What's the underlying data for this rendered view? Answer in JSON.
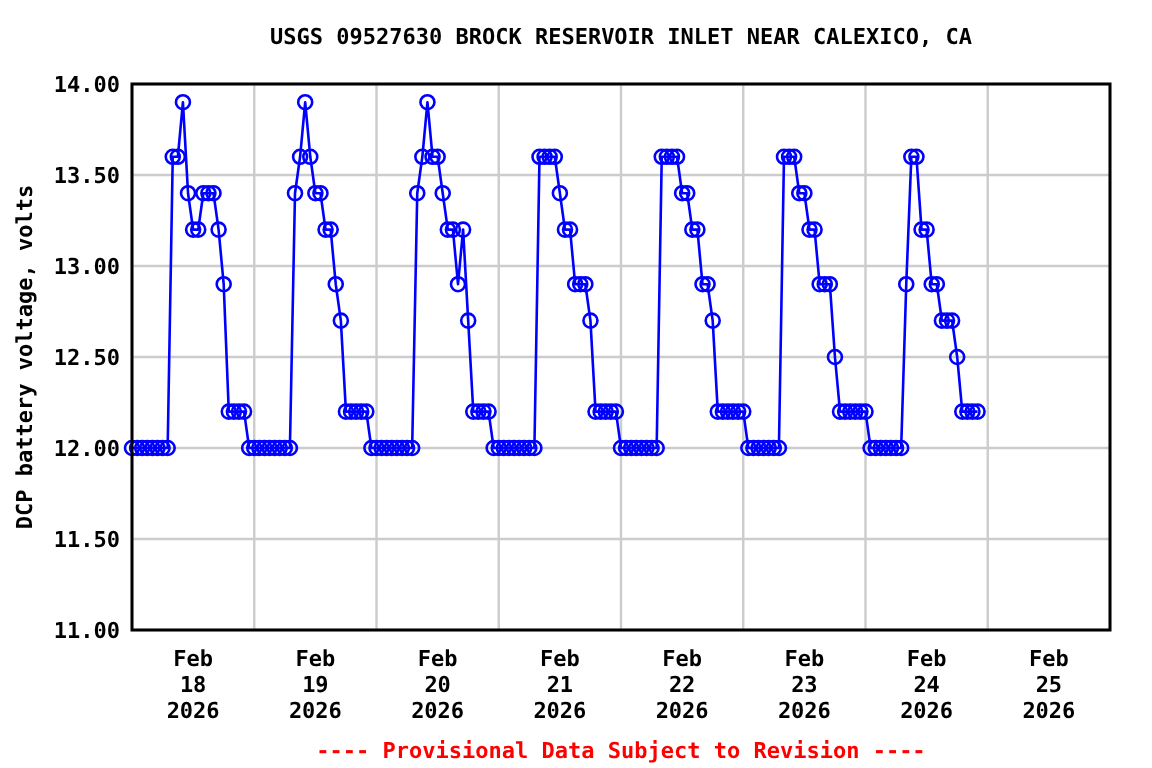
{
  "chart_data": {
    "type": "line",
    "title": "USGS 09527630 BROCK RESERVOIR INLET NEAR CALEXICO, CA",
    "ylabel": "DCP battery voltage, volts",
    "annotations": [
      "---- Provisional Data Subject to Revision ----"
    ],
    "xlim": [
      "2026-02-18T00:00",
      "2026-02-26T00:00"
    ],
    "xticks": [
      {
        "value": "2026-02-18T00:00",
        "label": null
      },
      {
        "value": "2026-02-18T12:00",
        "label": "Feb\n18\n2026"
      },
      {
        "value": "2026-02-19T00:00",
        "label": null
      },
      {
        "value": "2026-02-19T12:00",
        "label": "Feb\n19\n2026"
      },
      {
        "value": "2026-02-20T00:00",
        "label": null
      },
      {
        "value": "2026-02-20T12:00",
        "label": "Feb\n20\n2026"
      },
      {
        "value": "2026-02-21T00:00",
        "label": null
      },
      {
        "value": "2026-02-21T12:00",
        "label": "Feb\n21\n2026"
      },
      {
        "value": "2026-02-22T00:00",
        "label": null
      },
      {
        "value": "2026-02-22T12:00",
        "label": "Feb\n22\n2026"
      },
      {
        "value": "2026-02-23T00:00",
        "label": null
      },
      {
        "value": "2026-02-23T12:00",
        "label": "Feb\n23\n2026"
      },
      {
        "value": "2026-02-24T00:00",
        "label": null
      },
      {
        "value": "2026-02-24T12:00",
        "label": "Feb\n24\n2026"
      },
      {
        "value": "2026-02-25T00:00",
        "label": null
      },
      {
        "value": "2026-02-25T12:00",
        "label": "Feb\n25\n2026"
      },
      {
        "value": "2026-02-26T00:00",
        "label": null
      }
    ],
    "ylim": [
      11,
      14
    ],
    "yticks": [
      {
        "value": 11,
        "label": "11.00"
      },
      {
        "value": 11.5,
        "label": "11.50"
      },
      {
        "value": 12,
        "label": "12.00"
      },
      {
        "value": 12.5,
        "label": "12.50"
      },
      {
        "value": 13,
        "label": "13.00"
      },
      {
        "value": 13.5,
        "label": "13.50"
      },
      {
        "value": 14,
        "label": "14.00"
      }
    ],
    "grid": true,
    "marker": "circle",
    "line_style": "solid",
    "series": [
      {
        "color": "#0000ff",
        "x": [
          "2026-02-18T00:00",
          "2026-02-18T01:00",
          "2026-02-18T02:00",
          "2026-02-18T03:00",
          "2026-02-18T04:00",
          "2026-02-18T05:00",
          "2026-02-18T06:00",
          "2026-02-18T07:00",
          "2026-02-18T08:00",
          "2026-02-18T09:00",
          "2026-02-18T10:00",
          "2026-02-18T11:00",
          "2026-02-18T12:00",
          "2026-02-18T13:00",
          "2026-02-18T14:00",
          "2026-02-18T15:00",
          "2026-02-18T16:00",
          "2026-02-18T17:00",
          "2026-02-18T18:00",
          "2026-02-18T19:00",
          "2026-02-18T20:00",
          "2026-02-18T21:00",
          "2026-02-18T22:00",
          "2026-02-18T23:00",
          "2026-02-19T00:00",
          "2026-02-19T01:00",
          "2026-02-19T02:00",
          "2026-02-19T03:00",
          "2026-02-19T04:00",
          "2026-02-19T05:00",
          "2026-02-19T06:00",
          "2026-02-19T07:00",
          "2026-02-19T08:00",
          "2026-02-19T09:00",
          "2026-02-19T10:00",
          "2026-02-19T11:00",
          "2026-02-19T12:00",
          "2026-02-19T13:00",
          "2026-02-19T14:00",
          "2026-02-19T15:00",
          "2026-02-19T16:00",
          "2026-02-19T17:00",
          "2026-02-19T18:00",
          "2026-02-19T19:00",
          "2026-02-19T20:00",
          "2026-02-19T21:00",
          "2026-02-19T22:00",
          "2026-02-19T23:00",
          "2026-02-20T00:00",
          "2026-02-20T01:00",
          "2026-02-20T02:00",
          "2026-02-20T03:00",
          "2026-02-20T04:00",
          "2026-02-20T05:00",
          "2026-02-20T06:00",
          "2026-02-20T07:00",
          "2026-02-20T08:00",
          "2026-02-20T09:00",
          "2026-02-20T10:00",
          "2026-02-20T11:00",
          "2026-02-20T12:00",
          "2026-02-20T13:00",
          "2026-02-20T14:00",
          "2026-02-20T15:00",
          "2026-02-20T16:00",
          "2026-02-20T17:00",
          "2026-02-20T18:00",
          "2026-02-20T19:00",
          "2026-02-20T20:00",
          "2026-02-20T21:00",
          "2026-02-20T22:00",
          "2026-02-20T23:00",
          "2026-02-21T00:00",
          "2026-02-21T01:00",
          "2026-02-21T02:00",
          "2026-02-21T03:00",
          "2026-02-21T04:00",
          "2026-02-21T05:00",
          "2026-02-21T06:00",
          "2026-02-21T07:00",
          "2026-02-21T08:00",
          "2026-02-21T09:00",
          "2026-02-21T10:00",
          "2026-02-21T11:00",
          "2026-02-21T12:00",
          "2026-02-21T13:00",
          "2026-02-21T14:00",
          "2026-02-21T15:00",
          "2026-02-21T16:00",
          "2026-02-21T17:00",
          "2026-02-21T18:00",
          "2026-02-21T19:00",
          "2026-02-21T20:00",
          "2026-02-21T21:00",
          "2026-02-21T22:00",
          "2026-02-21T23:00",
          "2026-02-22T00:00",
          "2026-02-22T01:00",
          "2026-02-22T02:00",
          "2026-02-22T03:00",
          "2026-02-22T04:00",
          "2026-02-22T05:00",
          "2026-02-22T06:00",
          "2026-02-22T07:00",
          "2026-02-22T08:00",
          "2026-02-22T09:00",
          "2026-02-22T10:00",
          "2026-02-22T11:00",
          "2026-02-22T12:00",
          "2026-02-22T13:00",
          "2026-02-22T14:00",
          "2026-02-22T15:00",
          "2026-02-22T16:00",
          "2026-02-22T17:00",
          "2026-02-22T18:00",
          "2026-02-22T19:00",
          "2026-02-22T20:00",
          "2026-02-22T21:00",
          "2026-02-22T22:00",
          "2026-02-22T23:00",
          "2026-02-23T00:00",
          "2026-02-23T01:00",
          "2026-02-23T02:00",
          "2026-02-23T03:00",
          "2026-02-23T04:00",
          "2026-02-23T05:00",
          "2026-02-23T06:00",
          "2026-02-23T07:00",
          "2026-02-23T08:00",
          "2026-02-23T09:00",
          "2026-02-23T10:00",
          "2026-02-23T11:00",
          "2026-02-23T12:00",
          "2026-02-23T13:00",
          "2026-02-23T14:00",
          "2026-02-23T15:00",
          "2026-02-23T16:00",
          "2026-02-23T17:00",
          "2026-02-23T18:00",
          "2026-02-23T19:00",
          "2026-02-23T20:00",
          "2026-02-23T21:00",
          "2026-02-23T22:00",
          "2026-02-23T23:00",
          "2026-02-24T00:00",
          "2026-02-24T01:00",
          "2026-02-24T02:00",
          "2026-02-24T03:00",
          "2026-02-24T04:00",
          "2026-02-24T05:00",
          "2026-02-24T06:00",
          "2026-02-24T07:00",
          "2026-02-24T08:00",
          "2026-02-24T09:00",
          "2026-02-24T10:00",
          "2026-02-24T11:00",
          "2026-02-24T12:00",
          "2026-02-24T13:00",
          "2026-02-24T14:00",
          "2026-02-24T15:00",
          "2026-02-24T16:00",
          "2026-02-24T17:00",
          "2026-02-24T18:00",
          "2026-02-24T19:00",
          "2026-02-24T20:00",
          "2026-02-24T21:00",
          "2026-02-24T22:00"
        ],
        "values": [
          12,
          12,
          12,
          12,
          12,
          12,
          12,
          12,
          13.6,
          13.6,
          13.9,
          13.4,
          13.2,
          13.2,
          13.4,
          13.4,
          13.4,
          13.2,
          12.9,
          12.2,
          12.2,
          12.2,
          12.2,
          12,
          12,
          12,
          12,
          12,
          12,
          12,
          12,
          12,
          13.4,
          13.6,
          13.9,
          13.6,
          13.4,
          13.4,
          13.2,
          13.2,
          12.9,
          12.7,
          12.2,
          12.2,
          12.2,
          12.2,
          12.2,
          12,
          12,
          12,
          12,
          12,
          12,
          12,
          12,
          12,
          13.4,
          13.6,
          13.9,
          13.6,
          13.6,
          13.4,
          13.2,
          13.2,
          12.9,
          13.2,
          12.7,
          12.2,
          12.2,
          12.2,
          12.2,
          12,
          12,
          12,
          12,
          12,
          12,
          12,
          12,
          12,
          13.6,
          13.6,
          13.6,
          13.6,
          13.4,
          13.2,
          13.2,
          12.9,
          12.9,
          12.9,
          12.7,
          12.2,
          12.2,
          12.2,
          12.2,
          12.2,
          12,
          12,
          12,
          12,
          12,
          12,
          12,
          12,
          13.6,
          13.6,
          13.6,
          13.6,
          13.4,
          13.4,
          13.2,
          13.2,
          12.9,
          12.9,
          12.7,
          12.2,
          12.2,
          12.2,
          12.2,
          12.2,
          12.2,
          12,
          12,
          12,
          12,
          12,
          12,
          12,
          13.6,
          13.6,
          13.6,
          13.4,
          13.4,
          13.2,
          13.2,
          12.9,
          12.9,
          12.9,
          12.5,
          12.2,
          12.2,
          12.2,
          12.2,
          12.2,
          12.2,
          12,
          12,
          12,
          12,
          12,
          12,
          12,
          12.9,
          13.6,
          13.6,
          13.2,
          13.2,
          12.9,
          12.9,
          12.7,
          12.7,
          12.7,
          12.5,
          12.2,
          12.2,
          12.2,
          12.2
        ]
      }
    ]
  }
}
